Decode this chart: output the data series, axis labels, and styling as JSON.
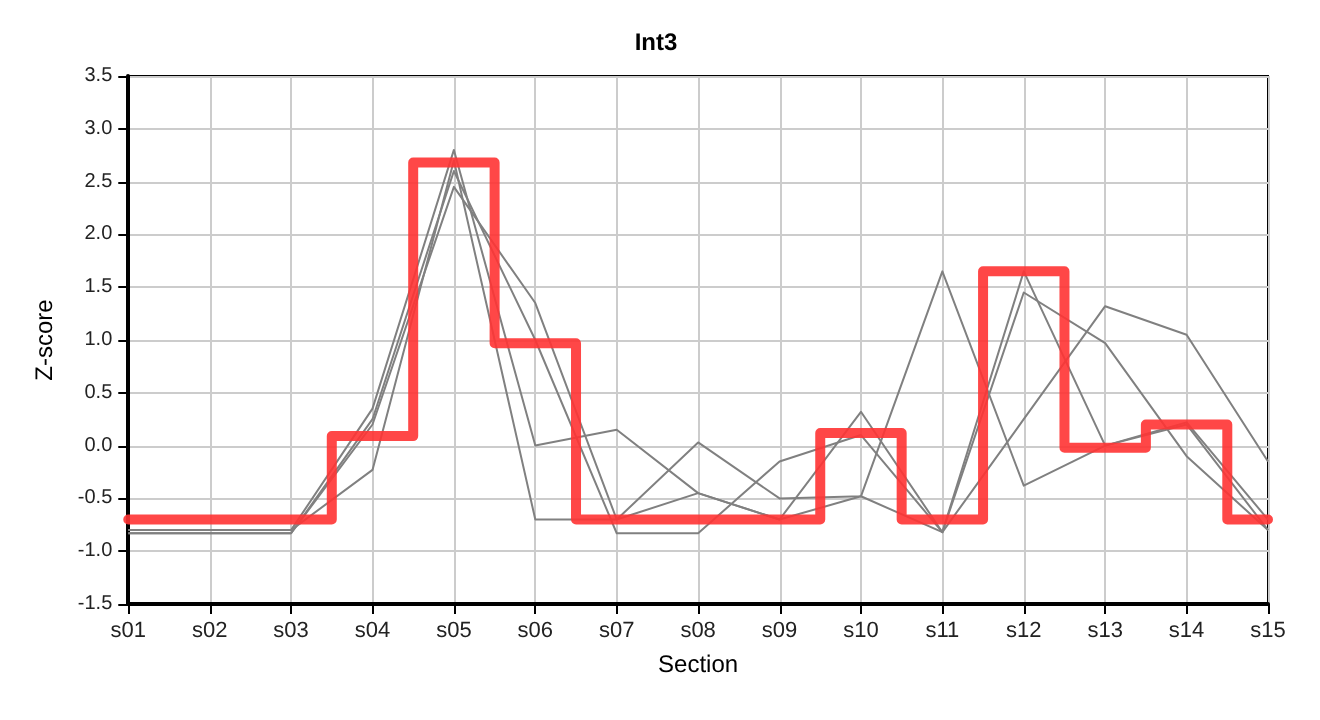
{
  "chart_data": {
    "type": "line",
    "title": "Int3",
    "xlabel": "Section",
    "ylabel": "Z-score",
    "categories": [
      "s01",
      "s02",
      "s03",
      "s04",
      "s05",
      "s06",
      "s07",
      "s08",
      "s09",
      "s10",
      "s11",
      "s12",
      "s13",
      "s14",
      "s15"
    ],
    "series": [
      {
        "color": "#808080",
        "values": [
          -0.83,
          -0.83,
          -0.83,
          0.2,
          2.45,
          1.35,
          -0.7,
          -0.45,
          -0.7,
          -0.48,
          -0.82,
          0.25,
          1.32,
          1.05,
          -0.15
        ]
      },
      {
        "color": "#808080",
        "values": [
          -0.8,
          -0.8,
          -0.8,
          -0.23,
          2.7,
          -0.7,
          -0.7,
          0.03,
          -0.5,
          -0.48,
          1.65,
          -0.38,
          0.0,
          0.2,
          -0.8
        ]
      },
      {
        "color": "#808080",
        "values": [
          -0.8,
          -0.8,
          -0.8,
          0.35,
          2.8,
          0.0,
          0.15,
          -0.45,
          -0.7,
          0.32,
          -0.82,
          1.65,
          0.0,
          0.22,
          -0.7
        ]
      },
      {
        "color": "#808080",
        "values": [
          -0.83,
          -0.83,
          -0.83,
          0.25,
          2.6,
          1.0,
          -0.83,
          -0.83,
          -0.15,
          0.1,
          -0.82,
          1.45,
          0.97,
          -0.1,
          -0.8
        ]
      },
      {
        "type": "step",
        "color": "#ff3333",
        "values": [
          -0.7,
          -0.7,
          -0.7,
          0.09,
          2.68,
          0.97,
          -0.7,
          -0.7,
          -0.7,
          0.12,
          -0.7,
          1.65,
          -0.02,
          0.2,
          -0.7
        ]
      }
    ],
    "ylim": [
      -1.5,
      3.5
    ],
    "yticks": [
      {
        "value": -1.5,
        "label": "-1.5"
      },
      {
        "value": -1.0,
        "label": "-1.0"
      },
      {
        "value": -0.5,
        "label": "-0.5"
      },
      {
        "value": 0,
        "label": "0.0"
      },
      {
        "value": 0.5,
        "label": "0.5"
      },
      {
        "value": 1.0,
        "label": "1.0"
      },
      {
        "value": 1.5,
        "label": "1.5"
      },
      {
        "value": 2.0,
        "label": "2.0"
      },
      {
        "value": 2.5,
        "label": "2.5"
      },
      {
        "value": 3.0,
        "label": "3.0"
      },
      {
        "value": 3.5,
        "label": "3.5"
      }
    ],
    "grid": true,
    "marker": "none",
    "line_style": "solid"
  }
}
